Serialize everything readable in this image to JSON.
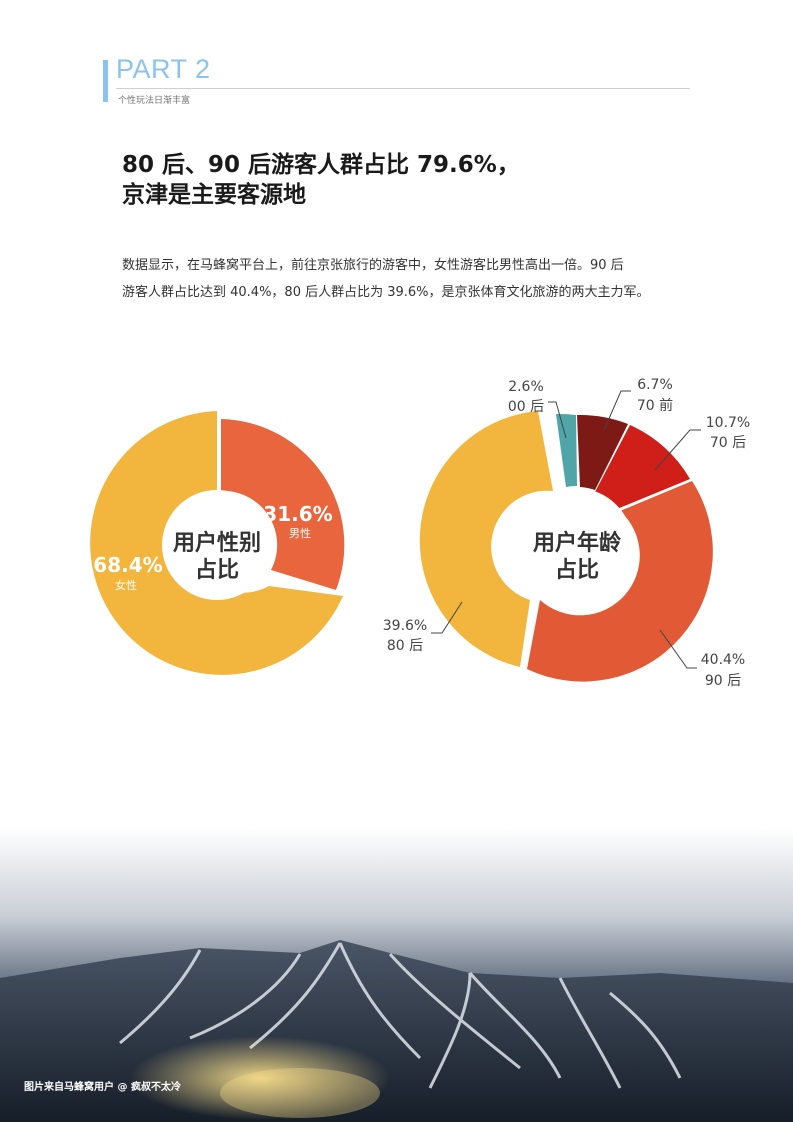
{
  "header": {
    "part": "PART 2",
    "subtitle": "个性玩法日渐丰富"
  },
  "article": {
    "headline_line1": "80 后、90 后游客人群占比 79.6%，",
    "headline_line2": "京津是主要客源地",
    "paragraph_line1": "数据显示，在马蜂窝平台上，前往京张旅行的游客中，女性游客比男性高出一倍。90 后",
    "paragraph_line2": "游客人群占比达到 40.4%，80 后人群占比为 39.6%，是京张体育文化旅游的两大主力军。"
  },
  "chart_data": [
    {
      "type": "pie",
      "title": "用户性别占比",
      "center_line1": "用户性别",
      "center_line2": "占比",
      "categories": [
        "男性",
        "女性"
      ],
      "values": [
        31.6,
        68.4
      ],
      "value_labels": [
        "31.6%",
        "68.4%"
      ],
      "colors": [
        "#e8613c",
        "#f2b53d"
      ]
    },
    {
      "type": "pie",
      "title": "用户年龄占比",
      "center_line1": "用户年龄",
      "center_line2": "占比",
      "categories": [
        "70 前",
        "70 后",
        "90 后",
        "80 后",
        "00 后"
      ],
      "values": [
        6.7,
        10.7,
        40.4,
        39.6,
        2.6
      ],
      "value_labels": [
        "6.7%",
        "10.7%",
        "40.4%",
        "39.6%",
        "2.6%"
      ],
      "colors": [
        "#7e1a16",
        "#cf1c16",
        "#e25a35",
        "#f2b53d",
        "#4fa5a8"
      ]
    }
  ],
  "photo": {
    "credit": "图片来自马蜂窝用户 @ 疯叔不太冷"
  }
}
